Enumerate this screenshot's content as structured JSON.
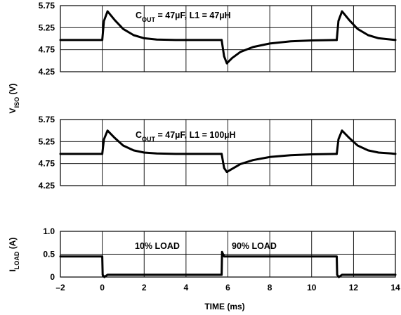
{
  "chart_data": [
    {
      "type": "line",
      "annotation": "C_OUT = 47µF, L1 = 47µH",
      "annotation_main": "C",
      "annotation_sub": "OUT",
      "annotation_rest": " = 47µF, L1 = 47µH",
      "xlim": [
        -2,
        14
      ],
      "ylim": [
        4.25,
        5.75
      ],
      "yticks": [
        "5.75",
        "5.25",
        "4.75",
        "4.25"
      ],
      "grid": true,
      "series": [
        {
          "x": [
            -2,
            0,
            0.08,
            0.25,
            0.6,
            1.0,
            1.5,
            2.0,
            2.6,
            3.5,
            5.7
          ],
          "y": [
            4.97,
            4.97,
            5.4,
            5.62,
            5.42,
            5.22,
            5.08,
            5.01,
            4.98,
            4.97,
            4.97
          ]
        },
        {
          "x": [
            5.7,
            5.82,
            5.95,
            6.2,
            6.6,
            7.2,
            8.0,
            9.0,
            10.0,
            11.2
          ],
          "y": [
            4.97,
            4.6,
            4.44,
            4.56,
            4.7,
            4.81,
            4.89,
            4.94,
            4.96,
            4.97
          ]
        },
        {
          "x": [
            11.2,
            11.28,
            11.45,
            11.8,
            12.2,
            12.7,
            13.2,
            13.8,
            14
          ],
          "y": [
            4.97,
            5.4,
            5.62,
            5.42,
            5.22,
            5.08,
            5.01,
            4.98,
            4.97
          ]
        }
      ]
    },
    {
      "type": "line",
      "annotation": "C_OUT = 47µF, L1 = 100µH",
      "annotation_main": "C",
      "annotation_sub": "OUT",
      "annotation_rest": " = 47µF, L1 = 100µH",
      "xlim": [
        -2,
        14
      ],
      "ylim": [
        4.25,
        5.75
      ],
      "yticks": [
        "5.75",
        "5.25",
        "4.75",
        "4.25"
      ],
      "grid": true,
      "series": [
        {
          "x": [
            -2,
            0,
            0.08,
            0.25,
            0.6,
            1.0,
            1.5,
            2.0,
            2.6,
            3.5,
            5.7
          ],
          "y": [
            4.97,
            4.97,
            5.3,
            5.5,
            5.33,
            5.16,
            5.05,
            5.0,
            4.98,
            4.97,
            4.97
          ]
        },
        {
          "x": [
            5.7,
            5.82,
            5.95,
            6.2,
            6.6,
            7.2,
            8.0,
            9.0,
            10.0,
            11.2
          ],
          "y": [
            4.97,
            4.65,
            4.56,
            4.63,
            4.74,
            4.83,
            4.9,
            4.94,
            4.96,
            4.97
          ]
        },
        {
          "x": [
            11.2,
            11.28,
            11.45,
            11.8,
            12.2,
            12.7,
            13.2,
            13.8,
            14
          ],
          "y": [
            4.97,
            5.3,
            5.5,
            5.33,
            5.16,
            5.05,
            5.0,
            4.98,
            4.97
          ]
        }
      ]
    },
    {
      "type": "line",
      "annotations": [
        "10% LOAD",
        "90% LOAD"
      ],
      "xlim": [
        -2,
        14
      ],
      "ylim": [
        0,
        1.0
      ],
      "xticks": [
        "–2",
        "0",
        "2",
        "4",
        "6",
        "8",
        "10",
        "12",
        "14"
      ],
      "yticks": [
        "1.0",
        "0.5",
        "0"
      ],
      "xlabel": "TIME (ms)",
      "grid": true,
      "series": [
        {
          "x": [
            -2,
            0,
            0.02,
            0.1,
            0.25,
            5.7,
            5.72,
            5.82,
            11.2,
            11.22,
            11.3,
            11.45,
            14
          ],
          "y": [
            0.45,
            0.45,
            0.05,
            0.0,
            0.05,
            0.05,
            0.55,
            0.45,
            0.45,
            0.05,
            0.0,
            0.05,
            0.05
          ]
        }
      ]
    }
  ],
  "ylabel_top": {
    "main": "V",
    "sub": "ISO",
    "rest": " (V)"
  },
  "ylabel_bottom": {
    "main": "I",
    "sub": "LOAD",
    "rest": " (A)"
  }
}
